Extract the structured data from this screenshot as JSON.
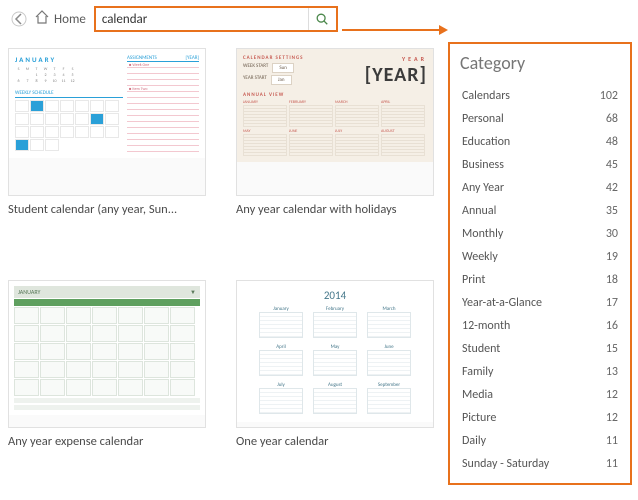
{
  "topbar": {
    "home_label": "Home",
    "search_value": "calendar"
  },
  "accent_color": "#e8711c",
  "templates": [
    {
      "label": "Student calendar (any year, Sun..."
    },
    {
      "label": "Any year calendar with holidays"
    },
    {
      "label": "Any year expense calendar"
    },
    {
      "label": "One year calendar"
    }
  ],
  "thumb_text": {
    "t1_month": "JANUARY",
    "t1_section": "WEEKLY SCHEDULE",
    "t1_assign": "ASSIGNMENTS",
    "t1_year": "[YEAR]",
    "t1_item1": "Week One",
    "t1_item2": "Item Two",
    "t2_settings": "CALENDAR SETTINGS",
    "t2_weekstart": "WEEK START",
    "t2_yearstart": "YEAR START",
    "t2_year_small": "YEAR",
    "t2_year_big": "[YEAR]",
    "t2_annual": "ANNUAL VIEW",
    "t3_month": "JANUARY",
    "t4_year": "2014"
  },
  "category": {
    "title": "Category",
    "items": [
      {
        "name": "Calendars",
        "count": 102
      },
      {
        "name": "Personal",
        "count": 68
      },
      {
        "name": "Education",
        "count": 48
      },
      {
        "name": "Business",
        "count": 45
      },
      {
        "name": "Any Year",
        "count": 42
      },
      {
        "name": "Annual",
        "count": 35
      },
      {
        "name": "Monthly",
        "count": 30
      },
      {
        "name": "Weekly",
        "count": 19
      },
      {
        "name": "Print",
        "count": 18
      },
      {
        "name": "Year-at-a-Glance",
        "count": 17
      },
      {
        "name": "12-month",
        "count": 16
      },
      {
        "name": "Student",
        "count": 15
      },
      {
        "name": "Family",
        "count": 13
      },
      {
        "name": "Media",
        "count": 12
      },
      {
        "name": "Picture",
        "count": 12
      },
      {
        "name": "Daily",
        "count": 11
      },
      {
        "name": "Sunday - Saturday",
        "count": 11
      }
    ]
  }
}
